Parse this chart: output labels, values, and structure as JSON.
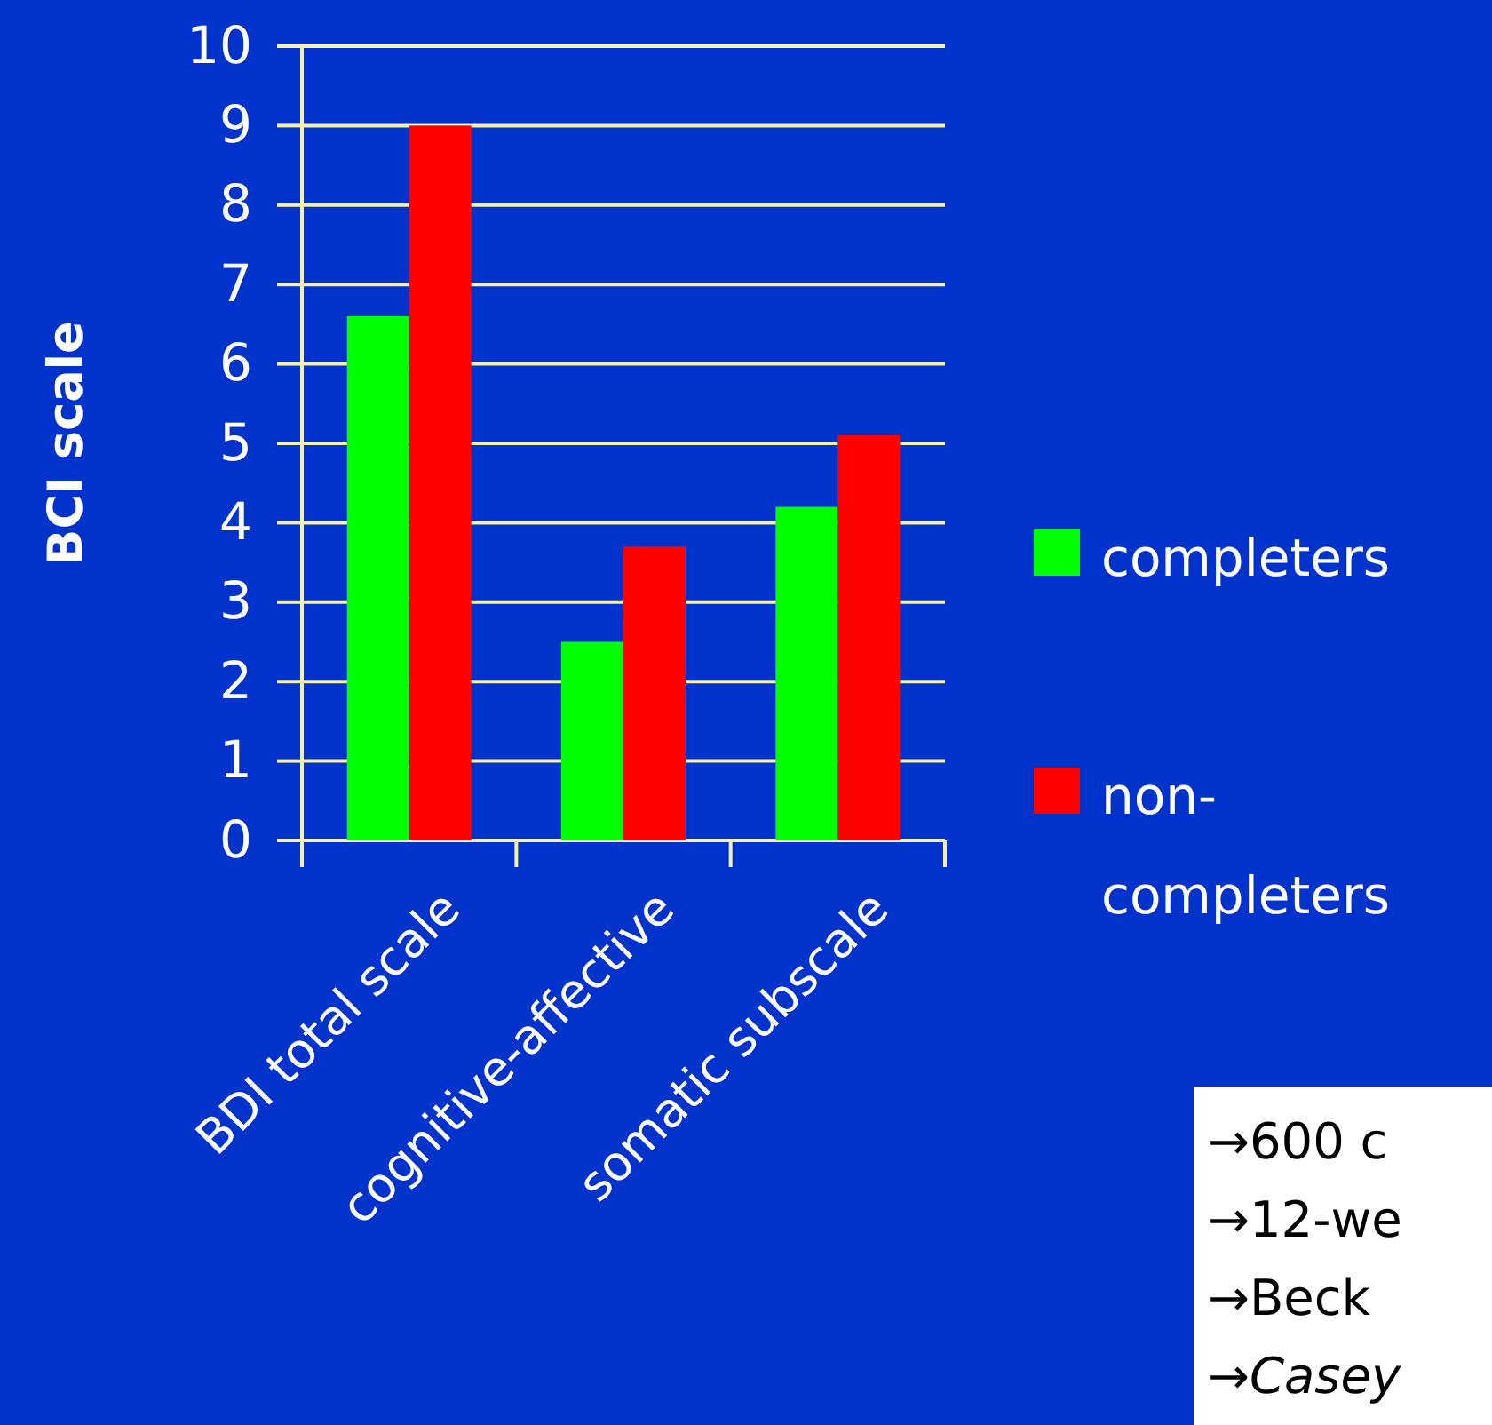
{
  "chart_data": {
    "type": "bar",
    "ylabel": "BCI scale",
    "categories": [
      "BDI total scale",
      "cognitive-affective",
      "somatic subscale"
    ],
    "series": [
      {
        "name": "completers",
        "color": "#00ff00",
        "values": [
          6.6,
          2.5,
          4.2
        ]
      },
      {
        "name": "non-completers",
        "color": "#ff0000",
        "values": [
          9.0,
          3.7,
          5.1
        ]
      }
    ],
    "ylim": [
      0,
      10
    ],
    "yticks": [
      0,
      1,
      2,
      3,
      4,
      5,
      6,
      7,
      8,
      9,
      10
    ],
    "grid": "y",
    "legend": "right",
    "annotations": [
      "→600 c",
      "→12-we",
      "→Beck",
      "→Casey"
    ]
  }
}
